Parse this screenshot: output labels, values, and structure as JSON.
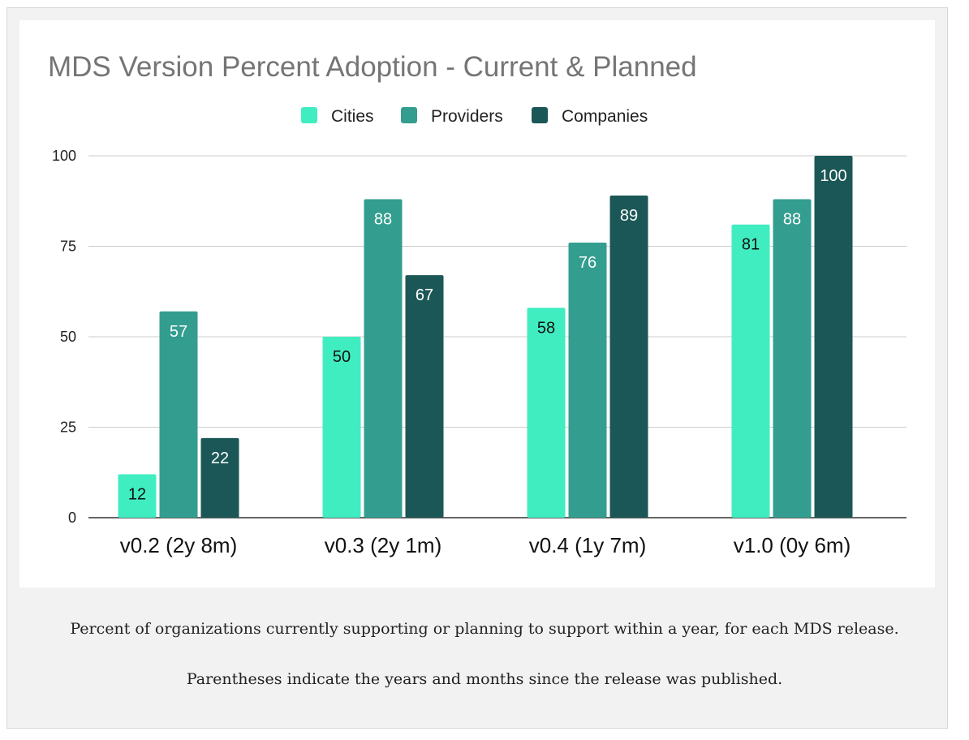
{
  "caption": {
    "line1": "Percent of organizations currently supporting or planning to support within a year, for each MDS release.",
    "line2": "Parentheses indicate the years and months since the release was published."
  },
  "chart_data": {
    "type": "bar",
    "title": "MDS Version Percent Adoption - Current & Planned",
    "categories": [
      "v0.2 (2y 8m)",
      "v0.3 (2y 1m)",
      "v0.4 (1y 7m)",
      "v1.0 (0y 6m)"
    ],
    "series": [
      {
        "name": "Cities",
        "color": "#40EDC0",
        "label_color": "#111111",
        "values": [
          12,
          50,
          58,
          81
        ]
      },
      {
        "name": "Providers",
        "color": "#339E8F",
        "label_color": "#ffffff",
        "values": [
          57,
          88,
          76,
          88
        ]
      },
      {
        "name": "Companies",
        "color": "#1B5756",
        "label_color": "#ffffff",
        "values": [
          22,
          67,
          89,
          100
        ]
      }
    ],
    "yticks": [
      0,
      25,
      50,
      75,
      100
    ],
    "ylim": [
      0,
      100
    ],
    "xlabel": "",
    "ylabel": "",
    "grid": true,
    "legend": "top-center"
  }
}
